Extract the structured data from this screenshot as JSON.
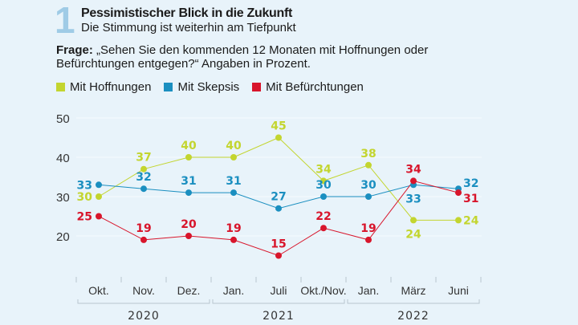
{
  "header": {
    "number": "1",
    "title": "Pessimistischer Blick in die Zukunft",
    "subtitle": "Die Stimmung ist weiterhin am Tiefpunkt",
    "question_label": "Frage:",
    "question_text": "„Sehen Sie den kommenden 12 Monaten mit Hoffnungen oder Befürchtungen entgegen?“ Angaben in Prozent."
  },
  "chart_data": {
    "type": "line",
    "categories": [
      "Okt.",
      "Nov.",
      "Dez.",
      "Jan.",
      "Juli",
      "Okt./Nov.",
      "Jan.",
      "März",
      "Juni"
    ],
    "year_groups": [
      {
        "label": "2020",
        "categories": [
          "Okt.",
          "Nov.",
          "Dez."
        ]
      },
      {
        "label": "2021",
        "categories": [
          "Jan.",
          "Juli",
          "Okt./Nov."
        ]
      },
      {
        "label": "2022",
        "categories": [
          "Jan.",
          "März",
          "Juni"
        ]
      }
    ],
    "yticks": [
      "20",
      "30",
      "40",
      "50"
    ],
    "ylim": [
      10,
      50
    ],
    "legend_position": "top-left",
    "series": [
      {
        "name": "Mit Hoffnungen",
        "color": "#c3d52f",
        "values": [
          30,
          37,
          40,
          40,
          45,
          34,
          38,
          24,
          24
        ]
      },
      {
        "name": "Mit Skepsis",
        "color": "#1b8fc0",
        "values": [
          33,
          32,
          31,
          31,
          27,
          30,
          30,
          33,
          32
        ]
      },
      {
        "name": "Mit Befürchtungen",
        "color": "#d8152b",
        "values": [
          25,
          19,
          20,
          19,
          15,
          22,
          19,
          34,
          31
        ]
      }
    ]
  }
}
